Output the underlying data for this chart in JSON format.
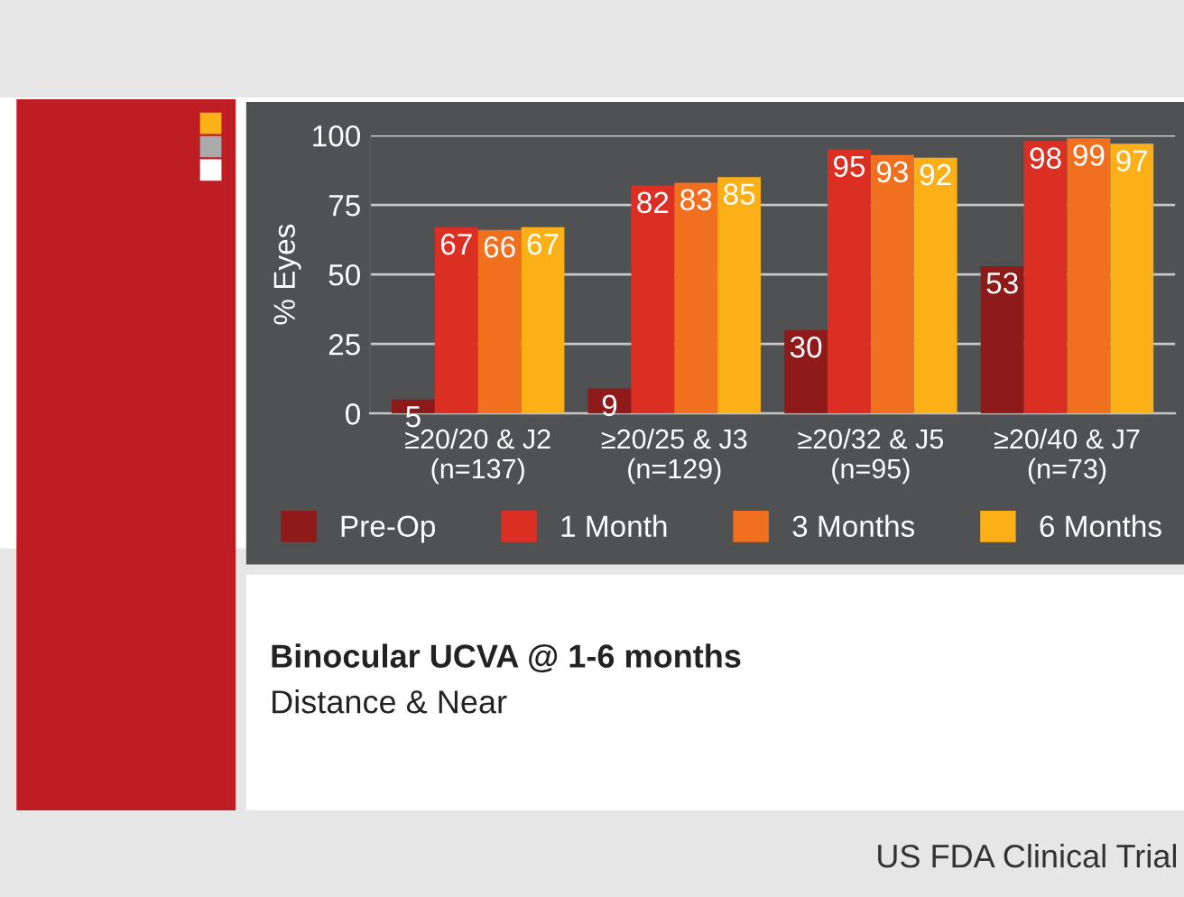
{
  "chart_data": {
    "type": "bar",
    "title": "Binocular UCVA @ 1-6 months",
    "subtitle": "Distance & Near",
    "ylabel": "% Eyes",
    "annotations": [
      "US FDA Clinical Trial"
    ],
    "categories": [
      "≥20/20 & J2\n(n=137)",
      "≥20/25 & J3\n(n=129)",
      "≥20/32 & J5\n(n=95)",
      "≥20/40 & J7\n(n=73)"
    ],
    "series": [
      {
        "name": "Pre-Op",
        "color": "#8e1a1a",
        "values": [
          5,
          9,
          30,
          53
        ]
      },
      {
        "name": "1 Month",
        "color": "#dc2f24",
        "values": [
          67,
          82,
          95,
          98
        ]
      },
      {
        "name": "3 Months",
        "color": "#f07020",
        "values": [
          66,
          83,
          93,
          99
        ]
      },
      {
        "name": "6 Months",
        "color": "#fbb018",
        "values": [
          67,
          85,
          92,
          97
        ]
      }
    ],
    "ylim": [
      0,
      100
    ],
    "yticks": [
      0,
      25,
      50,
      75,
      100
    ],
    "grid": "y",
    "legend": "bottom",
    "data_labels": true
  }
}
